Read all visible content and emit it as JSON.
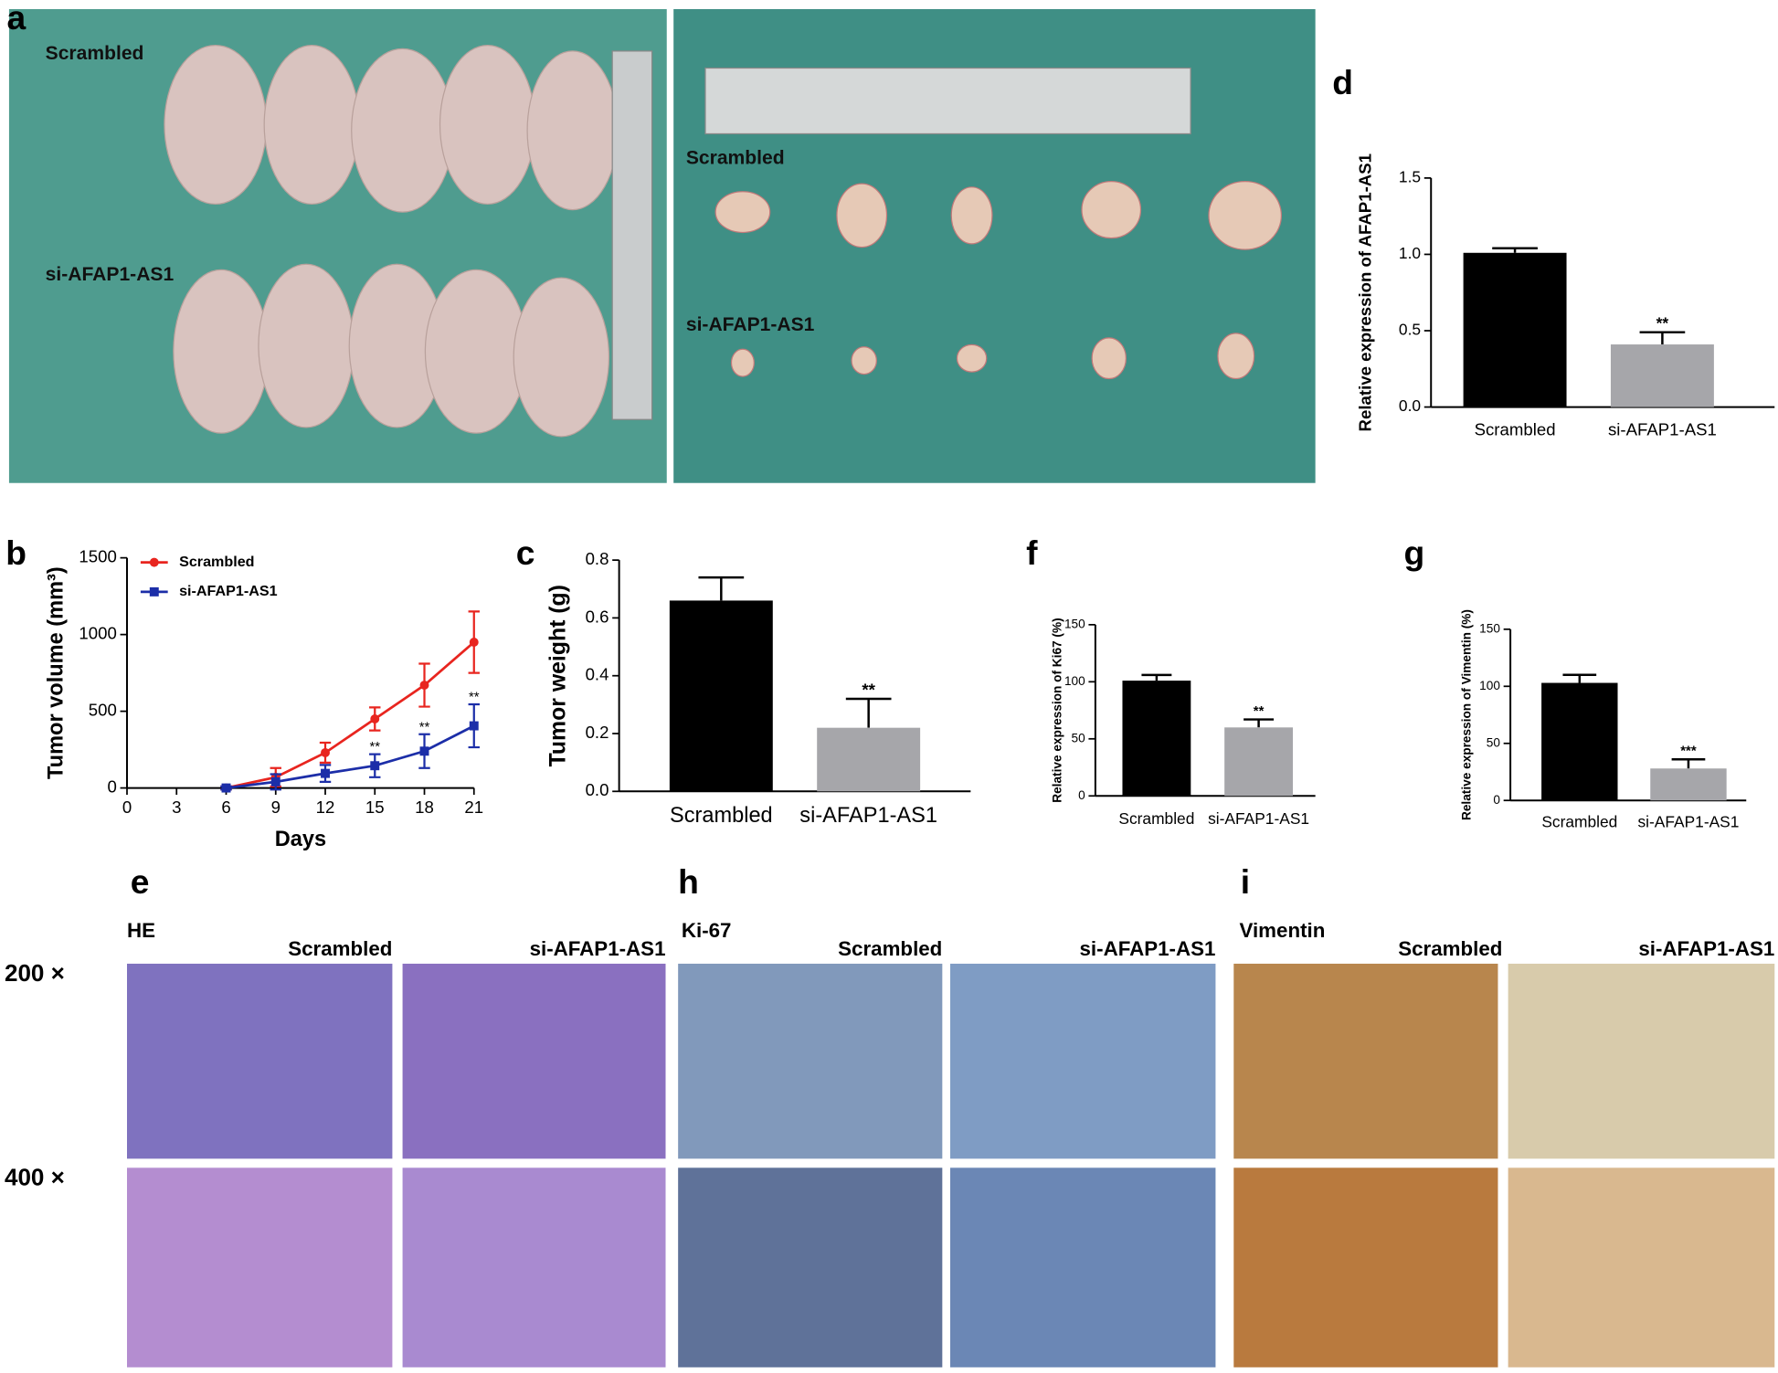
{
  "panels": {
    "a": {
      "letter": "a",
      "left_labels": [
        "Scrambled",
        "si-AFAP1-AS1"
      ],
      "right_labels": [
        "Scrambled",
        "si-AFAP1-AS1"
      ]
    },
    "e": {
      "letter": "e",
      "stain": "HE",
      "columns": [
        "Scrambled",
        "si-AFAP1-AS1"
      ]
    },
    "h": {
      "letter": "h",
      "stain": "Ki-67",
      "columns": [
        "Scrambled",
        "si-AFAP1-AS1"
      ]
    },
    "i": {
      "letter": "i",
      "stain": "Vimentin",
      "columns": [
        "Scrambled",
        "si-AFAP1-AS1"
      ]
    },
    "magnifications": [
      "200 ×",
      "400 ×"
    ]
  },
  "chart_data": [
    {
      "type": "line",
      "panel": "b",
      "x_label": "Days",
      "y_label": "Tumor volume (mm³)",
      "x": [
        6,
        9,
        12,
        15,
        18,
        21
      ],
      "series": [
        {
          "name": "Scrambled",
          "color": "#e8251f",
          "marker": "circle",
          "values": [
            0,
            70,
            230,
            450,
            670,
            950
          ],
          "errors": [
            10,
            60,
            65,
            75,
            140,
            200
          ]
        },
        {
          "name": "si-AFAP1-AS1",
          "color": "#1c2ea8",
          "marker": "square",
          "values": [
            0,
            40,
            95,
            145,
            240,
            405
          ],
          "errors": [
            10,
            50,
            55,
            75,
            110,
            140
          ],
          "significance": [
            null,
            null,
            null,
            "**",
            "**",
            "**"
          ]
        }
      ],
      "xlim": [
        0,
        21
      ],
      "xticks": [
        0,
        3,
        6,
        9,
        12,
        15,
        18,
        21
      ],
      "ylim": [
        0,
        1500
      ],
      "yticks": [
        0,
        500,
        1000,
        1500
      ]
    },
    {
      "type": "bar",
      "panel": "c",
      "y_label": "Tumor weight (g)",
      "categories": [
        "Scrambled",
        "si-AFAP1-AS1"
      ],
      "values": [
        0.66,
        0.22
      ],
      "errors": [
        0.08,
        0.1
      ],
      "colors": [
        "#000000",
        "#a6a6aa"
      ],
      "significance": [
        null,
        "**"
      ],
      "ylim": [
        0,
        0.8
      ],
      "yticks": [
        {
          "value": 0,
          "label": "0.0"
        },
        0.2,
        0.4,
        0.6,
        0.8
      ]
    },
    {
      "type": "bar",
      "panel": "d",
      "y_label": "Relative expression of AFAP1-AS1",
      "categories": [
        "Scrambled",
        "si-AFAP1-AS1"
      ],
      "values": [
        1.01,
        0.41
      ],
      "errors": [
        0.03,
        0.08
      ],
      "colors": [
        "#000000",
        "#a6a6aa"
      ],
      "significance": [
        null,
        "**"
      ],
      "ylim": [
        0,
        1.5
      ],
      "yticks": [
        {
          "value": 0,
          "label": "0.0"
        },
        0.5,
        {
          "value": 1,
          "label": "1.0"
        },
        1.5
      ]
    },
    {
      "type": "bar",
      "panel": "f",
      "y_label": "Relative expression of Ki67 (%)",
      "categories": [
        "Scrambled",
        "si-AFAP1-AS1"
      ],
      "values": [
        101,
        60
      ],
      "errors": [
        5,
        7
      ],
      "colors": [
        "#000000",
        "#a6a6aa"
      ],
      "significance": [
        null,
        "**"
      ],
      "ylim": [
        0,
        150
      ],
      "yticks": [
        0,
        50,
        100,
        150
      ]
    },
    {
      "type": "bar",
      "panel": "g",
      "y_label": "Relative expression of Vimentin (%)",
      "categories": [
        "Scrambled",
        "si-AFAP1-AS1"
      ],
      "values": [
        103,
        28
      ],
      "errors": [
        7,
        8
      ],
      "colors": [
        "#000000",
        "#a6a6aa"
      ],
      "significance": [
        null,
        "***"
      ],
      "ylim": [
        0,
        150
      ],
      "yticks": [
        0,
        50,
        100,
        150
      ]
    }
  ]
}
